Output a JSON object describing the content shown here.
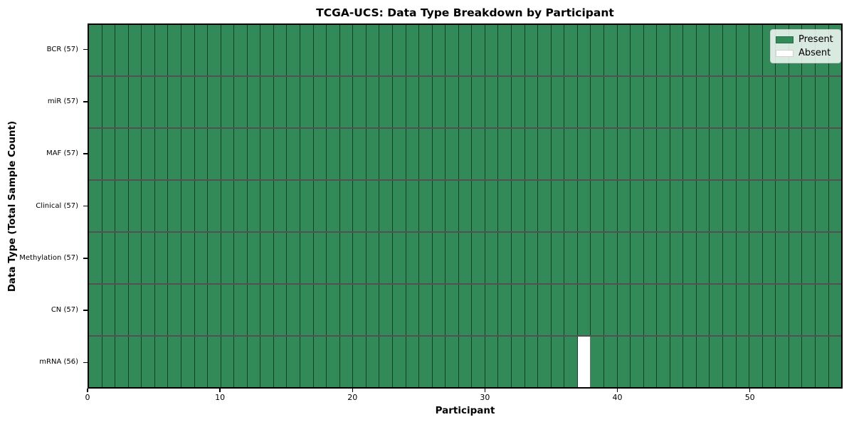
{
  "chart_data": {
    "type": "heatmap",
    "title": "TCGA-UCS: Data Type Breakdown by Participant",
    "xlabel": "Participant",
    "ylabel": "Data Type (Total Sample Count)",
    "x_range": [
      0,
      57
    ],
    "x_ticks": [
      0,
      10,
      20,
      30,
      40,
      50
    ],
    "n_participants": 57,
    "rows": [
      {
        "label": "BCR (57)",
        "data_type": "BCR",
        "total_samples": 57,
        "absent_participants": []
      },
      {
        "label": "miR (57)",
        "data_type": "miR",
        "total_samples": 57,
        "absent_participants": []
      },
      {
        "label": "MAF (57)",
        "data_type": "MAF",
        "total_samples": 57,
        "absent_participants": []
      },
      {
        "label": "Clinical (57)",
        "data_type": "Clinical",
        "total_samples": 57,
        "absent_participants": []
      },
      {
        "label": "Methylation (57)",
        "data_type": "Methylation",
        "total_samples": 57,
        "absent_participants": []
      },
      {
        "label": "CN (57)",
        "data_type": "CN",
        "total_samples": 57,
        "absent_participants": []
      },
      {
        "label": "mRNA (56)",
        "data_type": "mRNA",
        "total_samples": 56,
        "absent_participants": [
          37
        ]
      }
    ],
    "legend": {
      "position": "upper-right",
      "entries": [
        {
          "label": "Present",
          "color": "#318a58"
        },
        {
          "label": "Absent",
          "color": "#ffffff"
        }
      ]
    },
    "colors": {
      "present": "#318a58",
      "absent": "#ffffff",
      "axis": "#000000",
      "background": "#ffffff"
    },
    "grid": false
  }
}
